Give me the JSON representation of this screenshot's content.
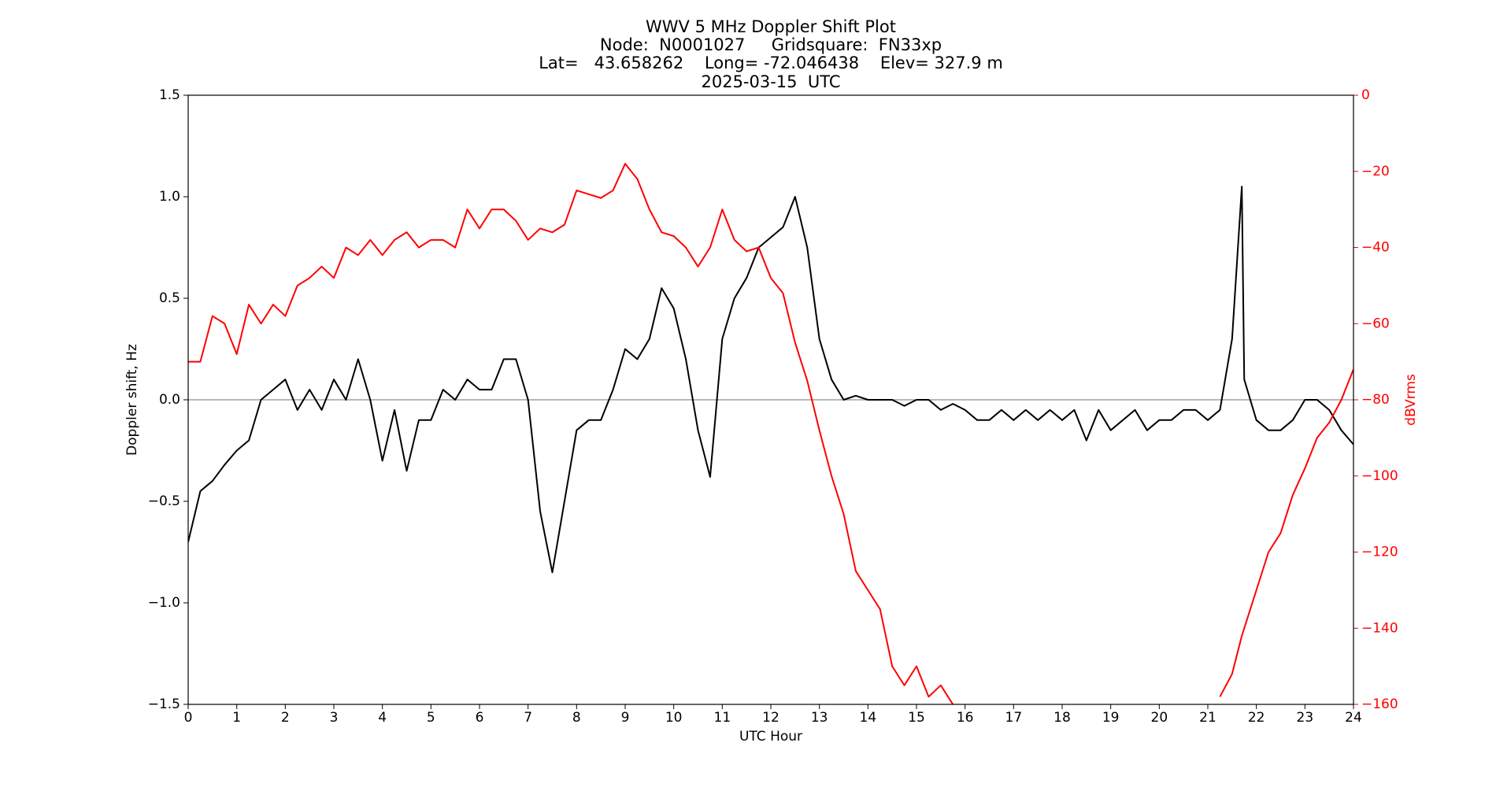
{
  "chart_data": {
    "type": "line",
    "title": [
      "WWV 5 MHz Doppler Shift Plot",
      "Node:  N0001027     Gridsquare:  FN33xp",
      "Lat=   43.658262    Long= -72.046438    Elev= 327.9 m",
      "2025-03-15  UTC"
    ],
    "xlabel": "UTC Hour",
    "ylabel": "Doppler shift, Hz",
    "y2label": "dBVrms",
    "xlim": [
      0,
      24
    ],
    "xticks": [
      0,
      1,
      2,
      3,
      4,
      5,
      6,
      7,
      8,
      9,
      10,
      11,
      12,
      13,
      14,
      15,
      16,
      17,
      18,
      19,
      20,
      21,
      22,
      23,
      24
    ],
    "ylim": [
      -1.5,
      1.5
    ],
    "yticks": [
      {
        "value": -1.5,
        "label": "−1.5"
      },
      {
        "value": -1.0,
        "label": "−1.0"
      },
      {
        "value": -0.5,
        "label": "−0.5"
      },
      {
        "value": 0,
        "label": "0.0"
      },
      {
        "value": 0.5,
        "label": "0.5"
      },
      {
        "value": 1.0,
        "label": "1.0"
      },
      {
        "value": 1.5,
        "label": "1.5"
      }
    ],
    "y2lim": [
      -160,
      0
    ],
    "y2ticks": [
      {
        "value": -160,
        "label": "−160"
      },
      {
        "value": -140,
        "label": "−140"
      },
      {
        "value": -120,
        "label": "−120"
      },
      {
        "value": -100,
        "label": "−100"
      },
      {
        "value": -80,
        "label": "−80"
      },
      {
        "value": -60,
        "label": "−60"
      },
      {
        "value": -40,
        "label": "−40"
      },
      {
        "value": -20,
        "label": "−20"
      },
      0
    ],
    "hlines": [
      0
    ],
    "hline_color": "#a0a0a0",
    "x": [
      0,
      0.25,
      0.5,
      0.75,
      1,
      1.25,
      1.5,
      1.75,
      2,
      2.25,
      2.5,
      2.75,
      3,
      3.25,
      3.5,
      3.75,
      4,
      4.25,
      4.5,
      4.75,
      5,
      5.25,
      5.5,
      5.75,
      6,
      6.25,
      6.5,
      6.75,
      7,
      7.25,
      7.5,
      7.75,
      8,
      8.25,
      8.5,
      8.75,
      9,
      9.25,
      9.5,
      9.75,
      10,
      10.25,
      10.5,
      10.75,
      11,
      11.25,
      11.5,
      11.75,
      12,
      12.25,
      12.5,
      12.75,
      13,
      13.25,
      13.5,
      13.75,
      14,
      14.25,
      14.5,
      14.75,
      15,
      15.25,
      15.5,
      15.75,
      16,
      16.25,
      16.5,
      16.75,
      17,
      17.25,
      17.5,
      17.75,
      18,
      18.25,
      18.5,
      18.75,
      19,
      19.25,
      19.5,
      19.75,
      20,
      20.25,
      20.5,
      20.75,
      21,
      21.25,
      21.5,
      21.7,
      21.75,
      22,
      22.25,
      22.5,
      22.75,
      23,
      23.25,
      23.5,
      23.75,
      24
    ],
    "series": [
      {
        "name": "Doppler shift",
        "color": "#000000",
        "axis": "y",
        "values": [
          -0.7,
          -0.45,
          -0.4,
          -0.32,
          -0.25,
          -0.2,
          0.0,
          0.05,
          0.1,
          -0.05,
          0.05,
          -0.05,
          0.1,
          0.0,
          0.2,
          0.0,
          -0.3,
          -0.05,
          -0.35,
          -0.1,
          -0.1,
          0.05,
          0.0,
          0.1,
          0.05,
          0.05,
          0.2,
          0.2,
          0.0,
          -0.55,
          -0.85,
          -0.5,
          -0.15,
          -0.1,
          -0.1,
          0.05,
          0.25,
          0.2,
          0.3,
          0.55,
          0.45,
          0.2,
          -0.15,
          -0.38,
          0.3,
          0.5,
          0.6,
          0.75,
          0.8,
          0.85,
          1.0,
          0.75,
          0.3,
          0.1,
          0.0,
          0.02,
          0.0,
          0.0,
          0.0,
          -0.03,
          0.0,
          0.0,
          -0.05,
          -0.02,
          -0.05,
          -0.1,
          -0.1,
          -0.05,
          -0.1,
          -0.05,
          -0.1,
          -0.05,
          -0.1,
          -0.05,
          -0.2,
          -0.05,
          -0.15,
          -0.1,
          -0.05,
          -0.15,
          -0.1,
          -0.1,
          -0.05,
          -0.05,
          -0.1,
          -0.05,
          0.3,
          1.05,
          0.1,
          -0.1,
          -0.15,
          -0.15,
          -0.1,
          0.0,
          0.0,
          -0.05,
          -0.15,
          -0.22
        ]
      },
      {
        "name": "dBVrms",
        "color": "#ff0000",
        "axis": "y2",
        "values": [
          -70,
          -70,
          -58,
          -60,
          -68,
          -55,
          -60,
          -55,
          -58,
          -50,
          -48,
          -45,
          -48,
          -40,
          -42,
          -38,
          -42,
          -38,
          -36,
          -40,
          -38,
          -38,
          -40,
          -30,
          -35,
          -30,
          -30,
          -33,
          -38,
          -35,
          -36,
          -34,
          -25,
          -26,
          -27,
          -25,
          -18,
          -22,
          -30,
          -36,
          -37,
          -40,
          -45,
          -40,
          -30,
          -38,
          -41,
          -40,
          -48,
          -52,
          -65,
          -75,
          -88,
          -100,
          -110,
          -125,
          -130,
          -135,
          -150,
          -155,
          -150,
          -158,
          -155,
          -160,
          null,
          null,
          null,
          null,
          null,
          null,
          null,
          null,
          null,
          null,
          null,
          null,
          null,
          null,
          null,
          null,
          null,
          null,
          null,
          null,
          null,
          -158,
          -152,
          -142,
          -140,
          -130,
          -120,
          -115,
          -105,
          -98,
          -90,
          -86,
          -80,
          -72
        ]
      }
    ]
  }
}
